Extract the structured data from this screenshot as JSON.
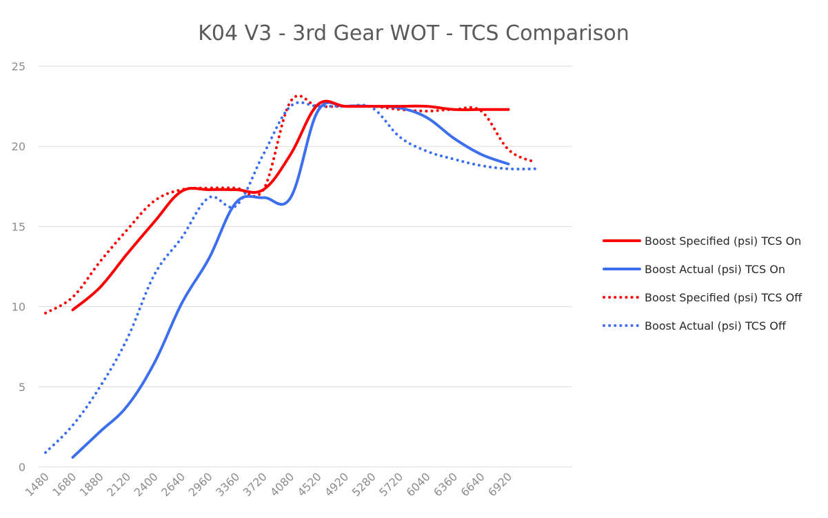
{
  "chart_data": {
    "type": "line",
    "title": "K04 V3 - 3rd Gear WOT - TCS Comparison",
    "xlabel": "",
    "ylabel": "",
    "ylim": [
      0,
      25
    ],
    "yticks": [
      "0",
      "5",
      "10",
      "15",
      "20",
      "25"
    ],
    "xticks": [
      "1480",
      "1680",
      "1880",
      "2120",
      "2400",
      "2640",
      "2960",
      "3360",
      "3720",
      "4080",
      "4520",
      "4920",
      "5280",
      "5720",
      "6040",
      "6360",
      "6640",
      "6920"
    ],
    "grid": "horizontal",
    "legend_position": "right",
    "series": [
      {
        "name": "Boost Specified (psi) TCS On",
        "color": "#ff0000",
        "style": "solid",
        "points": [
          [
            1,
            9.8
          ],
          [
            2,
            11.2
          ],
          [
            3,
            13.3
          ],
          [
            4,
            15.3
          ],
          [
            5,
            17.2
          ],
          [
            6,
            17.3
          ],
          [
            7,
            17.3
          ],
          [
            8,
            17.3
          ],
          [
            9,
            19.5
          ],
          [
            10,
            22.6
          ],
          [
            11,
            22.5
          ],
          [
            12,
            22.5
          ],
          [
            13,
            22.5
          ],
          [
            14,
            22.5
          ],
          [
            15,
            22.3
          ],
          [
            16,
            22.3
          ],
          [
            17,
            22.3
          ]
        ]
      },
      {
        "name": "Boost Actual (psi) TCS On",
        "color": "#3c6ff0",
        "style": "solid",
        "points": [
          [
            1,
            0.6
          ],
          [
            2,
            2.2
          ],
          [
            3,
            3.8
          ],
          [
            4,
            6.5
          ],
          [
            5,
            10.2
          ],
          [
            6,
            13.0
          ],
          [
            7,
            16.5
          ],
          [
            8,
            16.8
          ],
          [
            9,
            16.8
          ],
          [
            10,
            22.2
          ],
          [
            11,
            22.5
          ],
          [
            12,
            22.5
          ],
          [
            13,
            22.4
          ],
          [
            14,
            21.8
          ],
          [
            15,
            20.5
          ],
          [
            16,
            19.5
          ],
          [
            17,
            18.9
          ]
        ]
      },
      {
        "name": "Boost Specified (psi) TCS Off",
        "color": "#ff0000",
        "style": "dotted",
        "points": [
          [
            0,
            9.6
          ],
          [
            1,
            10.6
          ],
          [
            2,
            12.8
          ],
          [
            3,
            14.8
          ],
          [
            4,
            16.6
          ],
          [
            5,
            17.3
          ],
          [
            6,
            17.4
          ],
          [
            7,
            17.4
          ],
          [
            8,
            17.3
          ],
          [
            9,
            22.8
          ],
          [
            10,
            22.5
          ],
          [
            11,
            22.5
          ],
          [
            12,
            22.5
          ],
          [
            13,
            22.3
          ],
          [
            14,
            22.2
          ],
          [
            15,
            22.3
          ],
          [
            16,
            22.2
          ],
          [
            17,
            19.8
          ],
          [
            18,
            19.0
          ]
        ]
      },
      {
        "name": "Boost Actual (psi) TCS Off",
        "color": "#3c6ff0",
        "style": "dotted",
        "points": [
          [
            0,
            0.9
          ],
          [
            1,
            2.6
          ],
          [
            2,
            5.0
          ],
          [
            3,
            8.0
          ],
          [
            4,
            12.0
          ],
          [
            5,
            14.3
          ],
          [
            6,
            16.8
          ],
          [
            7,
            16.3
          ],
          [
            8,
            19.5
          ],
          [
            9,
            22.5
          ],
          [
            10,
            22.5
          ],
          [
            11,
            22.5
          ],
          [
            12,
            22.4
          ],
          [
            13,
            20.6
          ],
          [
            14,
            19.7
          ],
          [
            15,
            19.2
          ],
          [
            16,
            18.8
          ],
          [
            17,
            18.6
          ],
          [
            18,
            18.6
          ]
        ]
      }
    ]
  }
}
